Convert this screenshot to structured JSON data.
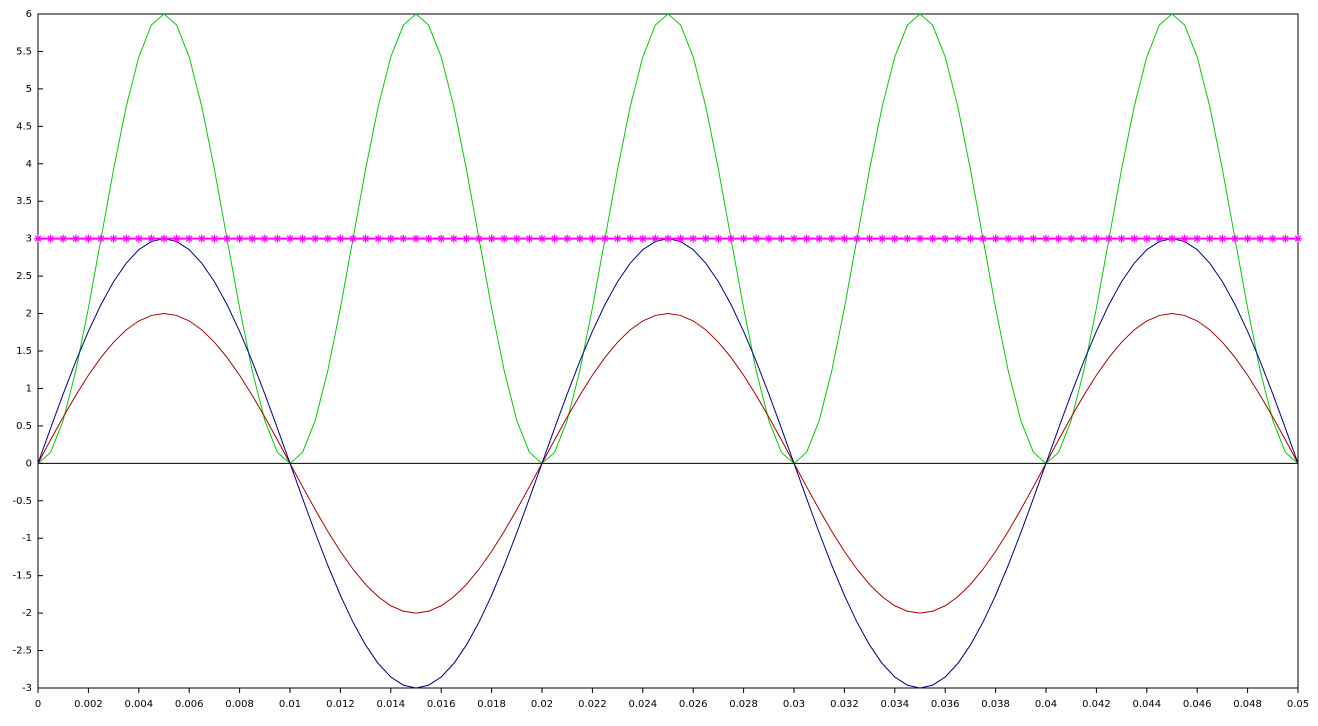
{
  "chart_data": {
    "type": "line",
    "x": [
      0,
      0.0005,
      0.001,
      0.0015,
      0.002,
      0.0025,
      0.003,
      0.0035,
      0.004,
      0.0045,
      0.005,
      0.0055,
      0.006,
      0.0065,
      0.007,
      0.0075,
      0.008,
      0.0085,
      0.009,
      0.0095,
      0.01,
      0.0105,
      0.011,
      0.0115,
      0.012,
      0.0125,
      0.013,
      0.0135,
      0.014,
      0.0145,
      0.015,
      0.0155,
      0.016,
      0.0165,
      0.017,
      0.0175,
      0.018,
      0.0185,
      0.019,
      0.0195,
      0.02,
      0.0205,
      0.021,
      0.0215,
      0.022,
      0.0225,
      0.023,
      0.0235,
      0.024,
      0.0245,
      0.025,
      0.0255,
      0.026,
      0.0265,
      0.027,
      0.0275,
      0.028,
      0.0285,
      0.029,
      0.0295,
      0.03,
      0.0305,
      0.031,
      0.0315,
      0.032,
      0.0325,
      0.033,
      0.0335,
      0.034,
      0.0345,
      0.035,
      0.0355,
      0.036,
      0.0365,
      0.037,
      0.0375,
      0.038,
      0.0385,
      0.039,
      0.0395,
      0.04,
      0.0405,
      0.041,
      0.0415,
      0.042,
      0.0425,
      0.043,
      0.0435,
      0.044,
      0.0445,
      0.045,
      0.0455,
      0.046,
      0.0465,
      0.047,
      0.0475,
      0.048,
      0.0485,
      0.049,
      0.0495,
      0.05
    ],
    "series": [
      {
        "color": "#00cc00",
        "values": [
          0,
          0.147,
          0.573,
          1.237,
          2.073,
          3,
          3.927,
          4.763,
          5.427,
          5.853,
          6,
          5.853,
          5.427,
          4.763,
          3.927,
          3,
          2.073,
          1.237,
          0.573,
          0.147,
          0,
          0.147,
          0.573,
          1.237,
          2.073,
          3,
          3.927,
          4.763,
          5.427,
          5.853,
          6,
          5.853,
          5.427,
          4.763,
          3.927,
          3,
          2.073,
          1.237,
          0.573,
          0.147,
          0,
          0.147,
          0.573,
          1.237,
          2.073,
          3,
          3.927,
          4.763,
          5.427,
          5.853,
          6,
          5.853,
          5.427,
          4.763,
          3.927,
          3,
          2.073,
          1.237,
          0.573,
          0.147,
          0,
          0.147,
          0.573,
          1.237,
          2.073,
          3,
          3.927,
          4.763,
          5.427,
          5.853,
          6,
          5.853,
          5.427,
          4.763,
          3.927,
          3,
          2.073,
          1.237,
          0.573,
          0.147,
          0,
          0.147,
          0.573,
          1.237,
          2.073,
          3,
          3.927,
          4.763,
          5.427,
          5.853,
          6,
          5.853,
          5.427,
          4.763,
          3.927,
          3,
          2.073,
          1.237,
          0.573,
          0.147,
          0
        ]
      },
      {
        "color": "#b00000",
        "values": [
          0,
          0.313,
          0.618,
          0.908,
          1.176,
          1.414,
          1.618,
          1.782,
          1.902,
          1.975,
          2,
          1.975,
          1.902,
          1.782,
          1.618,
          1.414,
          1.176,
          0.908,
          0.618,
          0.313,
          0,
          -0.313,
          -0.618,
          -0.908,
          -1.176,
          -1.414,
          -1.618,
          -1.782,
          -1.902,
          -1.975,
          -2,
          -1.975,
          -1.902,
          -1.782,
          -1.618,
          -1.414,
          -1.176,
          -0.908,
          -0.618,
          -0.313,
          0,
          0.313,
          0.618,
          0.908,
          1.176,
          1.414,
          1.618,
          1.782,
          1.902,
          1.975,
          2,
          1.975,
          1.902,
          1.782,
          1.618,
          1.414,
          1.176,
          0.908,
          0.618,
          0.313,
          0,
          -0.313,
          -0.618,
          -0.908,
          -1.176,
          -1.414,
          -1.618,
          -1.782,
          -1.902,
          -1.975,
          -2,
          -1.975,
          -1.902,
          -1.782,
          -1.618,
          -1.414,
          -1.176,
          -0.908,
          -0.618,
          -0.313,
          0,
          0.313,
          0.618,
          0.908,
          1.176,
          1.414,
          1.618,
          1.782,
          1.902,
          1.975,
          2,
          1.975,
          1.902,
          1.782,
          1.618,
          1.414,
          1.176,
          0.908,
          0.618,
          0.313,
          0
        ]
      },
      {
        "color": "#000088",
        "values": [
          0,
          0.469,
          0.927,
          1.362,
          1.763,
          2.121,
          2.427,
          2.673,
          2.853,
          2.963,
          3,
          2.963,
          2.853,
          2.673,
          2.427,
          2.121,
          1.763,
          1.362,
          0.927,
          0.469,
          0,
          -0.469,
          -0.927,
          -1.362,
          -1.763,
          -2.121,
          -2.427,
          -2.673,
          -2.853,
          -2.963,
          -3,
          -2.963,
          -2.853,
          -2.673,
          -2.427,
          -2.121,
          -1.763,
          -1.362,
          -0.927,
          -0.469,
          0,
          0.469,
          0.927,
          1.362,
          1.763,
          2.121,
          2.427,
          2.673,
          2.853,
          2.963,
          3,
          2.963,
          2.853,
          2.673,
          2.427,
          2.121,
          1.763,
          1.362,
          0.927,
          0.469,
          0,
          -0.469,
          -0.927,
          -1.362,
          -1.763,
          -2.121,
          -2.427,
          -2.673,
          -2.853,
          -2.963,
          -3,
          -2.963,
          -2.853,
          -2.673,
          -2.427,
          -2.121,
          -1.763,
          -1.362,
          -0.927,
          -0.469,
          0,
          0.469,
          0.927,
          1.362,
          1.763,
          2.121,
          2.427,
          2.673,
          2.853,
          2.963,
          3,
          2.963,
          2.853,
          2.673,
          2.427,
          2.121,
          1.763,
          1.362,
          0.927,
          0.469,
          0
        ]
      },
      {
        "color": "#ff00ff",
        "marker": "star",
        "values": [
          3,
          3,
          3,
          3,
          3,
          3,
          3,
          3,
          3,
          3,
          3,
          3,
          3,
          3,
          3,
          3,
          3,
          3,
          3,
          3,
          3,
          3,
          3,
          3,
          3,
          3,
          3,
          3,
          3,
          3,
          3,
          3,
          3,
          3,
          3,
          3,
          3,
          3,
          3,
          3,
          3,
          3,
          3,
          3,
          3,
          3,
          3,
          3,
          3,
          3,
          3,
          3,
          3,
          3,
          3,
          3,
          3,
          3,
          3,
          3,
          3,
          3,
          3,
          3,
          3,
          3,
          3,
          3,
          3,
          3,
          3,
          3,
          3,
          3,
          3,
          3,
          3,
          3,
          3,
          3,
          3,
          3,
          3,
          3,
          3,
          3,
          3,
          3,
          3,
          3,
          3,
          3,
          3,
          3,
          3,
          3,
          3,
          3,
          3,
          3,
          3
        ]
      }
    ],
    "xlim": [
      0,
      0.05
    ],
    "xticks": [
      0,
      0.002,
      0.004,
      0.006,
      0.008,
      0.01,
      0.012,
      0.014,
      0.016,
      0.018,
      0.02,
      0.022,
      0.024,
      0.026,
      0.028,
      0.03,
      0.032,
      0.034,
      0.036,
      0.038,
      0.04,
      0.042,
      0.044,
      0.046,
      0.048,
      0.05
    ],
    "ylim": [
      -3,
      6
    ],
    "yticks": [
      -3,
      -2.5,
      -2,
      -1.5,
      -1,
      -0.5,
      0,
      0.5,
      1,
      1.5,
      2,
      2.5,
      3,
      3.5,
      4,
      4.5,
      5,
      5.5,
      6
    ],
    "grid": false
  }
}
